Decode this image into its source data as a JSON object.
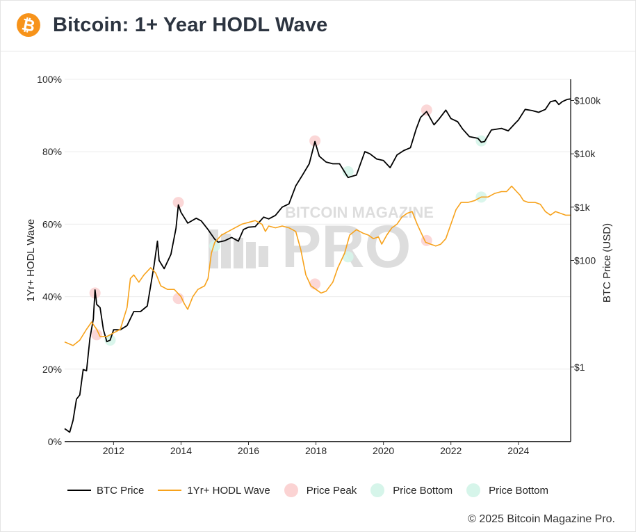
{
  "header": {
    "title": "Bitcoin: 1+ Year HODL Wave",
    "logo_icon": "bitcoin-logo-icon",
    "logo_color": "#f7931a"
  },
  "watermark": {
    "line1": "BITCOIN MAGAZINE",
    "line2": "PRO"
  },
  "legend": {
    "items": [
      {
        "label": "BTC Price",
        "kind": "line",
        "color": "#000000"
      },
      {
        "label": "1Yr+ HODL Wave",
        "kind": "line",
        "color": "#f7a21b"
      },
      {
        "label": "Price Peak",
        "kind": "dot",
        "color": "#fbd3d3"
      },
      {
        "label": "Price Bottom",
        "kind": "dot",
        "color": "#d6f5ea"
      },
      {
        "label": "Price Bottom",
        "kind": "dot",
        "color": "#d6f5ea"
      }
    ]
  },
  "copyright": "© 2025 Bitcoin Magazine Pro.",
  "chart_data": {
    "type": "line",
    "title": "Bitcoin: 1+ Year HODL Wave",
    "xlabel": "",
    "ylabel_left": "1Yr+ HODL Wave",
    "ylabel_right": "BTC Price (USD)",
    "x_range": [
      2010.55,
      2025.55
    ],
    "x_ticks": [
      2012,
      2014,
      2016,
      2018,
      2020,
      2022,
      2024
    ],
    "y_left_range": [
      0,
      100
    ],
    "y_left_ticks": [
      {
        "value": 0,
        "label": "0%"
      },
      {
        "value": 20,
        "label": "20%"
      },
      {
        "value": 40,
        "label": "40%"
      },
      {
        "value": 60,
        "label": "60%"
      },
      {
        "value": 80,
        "label": "80%"
      },
      {
        "value": 100,
        "label": "100%"
      }
    ],
    "y_right_scale": "log",
    "y_right_range": [
      0.04,
      250000
    ],
    "y_right_ticks": [
      {
        "value": 1,
        "label": "$1"
      },
      {
        "value": 100,
        "label": "$100"
      },
      {
        "value": 1000,
        "label": "$1k"
      },
      {
        "value": 10000,
        "label": "$10k"
      },
      {
        "value": 100000,
        "label": "$100k"
      }
    ],
    "grid": "horizontal",
    "legend_position": "bottom",
    "series": [
      {
        "name": "BTC Price",
        "axis": "right",
        "color": "#000000",
        "points": [
          [
            2010.55,
            0.07
          ],
          [
            2010.7,
            0.06
          ],
          [
            2010.8,
            0.1
          ],
          [
            2010.9,
            0.25
          ],
          [
            2011.0,
            0.3
          ],
          [
            2011.1,
            0.9
          ],
          [
            2011.2,
            0.85
          ],
          [
            2011.3,
            3.5
          ],
          [
            2011.4,
            8
          ],
          [
            2011.45,
            28
          ],
          [
            2011.5,
            15
          ],
          [
            2011.6,
            13
          ],
          [
            2011.7,
            5
          ],
          [
            2011.8,
            3
          ],
          [
            2011.9,
            3.2
          ],
          [
            2012.0,
            5
          ],
          [
            2012.2,
            5
          ],
          [
            2012.4,
            6
          ],
          [
            2012.6,
            11
          ],
          [
            2012.8,
            11
          ],
          [
            2013.0,
            14
          ],
          [
            2013.2,
            80
          ],
          [
            2013.3,
            230
          ],
          [
            2013.35,
            100
          ],
          [
            2013.5,
            70
          ],
          [
            2013.7,
            130
          ],
          [
            2013.85,
            400
          ],
          [
            2013.92,
            1100
          ],
          [
            2014.0,
            800
          ],
          [
            2014.2,
            500
          ],
          [
            2014.45,
            620
          ],
          [
            2014.6,
            550
          ],
          [
            2014.8,
            380
          ],
          [
            2015.0,
            250
          ],
          [
            2015.1,
            220
          ],
          [
            2015.3,
            235
          ],
          [
            2015.5,
            270
          ],
          [
            2015.7,
            230
          ],
          [
            2015.85,
            380
          ],
          [
            2016.0,
            420
          ],
          [
            2016.2,
            430
          ],
          [
            2016.45,
            650
          ],
          [
            2016.6,
            600
          ],
          [
            2016.8,
            700
          ],
          [
            2017.0,
            1000
          ],
          [
            2017.2,
            1150
          ],
          [
            2017.4,
            2500
          ],
          [
            2017.6,
            4000
          ],
          [
            2017.8,
            6500
          ],
          [
            2017.97,
            17000
          ],
          [
            2018.1,
            9000
          ],
          [
            2018.3,
            7000
          ],
          [
            2018.5,
            6500
          ],
          [
            2018.7,
            6500
          ],
          [
            2018.95,
            3600
          ],
          [
            2019.2,
            4000
          ],
          [
            2019.45,
            11000
          ],
          [
            2019.6,
            10000
          ],
          [
            2019.8,
            8000
          ],
          [
            2020.0,
            7500
          ],
          [
            2020.2,
            5500
          ],
          [
            2020.4,
            9500
          ],
          [
            2020.6,
            11500
          ],
          [
            2020.8,
            13000
          ],
          [
            2020.97,
            29000
          ],
          [
            2021.1,
            48000
          ],
          [
            2021.28,
            62000
          ],
          [
            2021.5,
            35000
          ],
          [
            2021.65,
            45000
          ],
          [
            2021.85,
            66000
          ],
          [
            2022.0,
            46000
          ],
          [
            2022.2,
            40000
          ],
          [
            2022.35,
            29000
          ],
          [
            2022.55,
            21000
          ],
          [
            2022.8,
            19500
          ],
          [
            2022.9,
            16500
          ],
          [
            2023.0,
            17000
          ],
          [
            2023.2,
            28000
          ],
          [
            2023.5,
            30000
          ],
          [
            2023.7,
            27000
          ],
          [
            2023.9,
            37000
          ],
          [
            2024.0,
            43000
          ],
          [
            2024.2,
            68000
          ],
          [
            2024.4,
            65000
          ],
          [
            2024.6,
            60000
          ],
          [
            2024.8,
            68000
          ],
          [
            2024.95,
            95000
          ],
          [
            2025.1,
            100000
          ],
          [
            2025.2,
            84000
          ],
          [
            2025.3,
            95000
          ],
          [
            2025.45,
            105000
          ],
          [
            2025.55,
            107000
          ]
        ]
      },
      {
        "name": "1Yr+ HODL Wave",
        "axis": "left",
        "color": "#f7a21b",
        "points": [
          [
            2010.55,
            27.5
          ],
          [
            2010.8,
            26.5
          ],
          [
            2011.0,
            28
          ],
          [
            2011.2,
            31
          ],
          [
            2011.35,
            33
          ],
          [
            2011.5,
            31
          ],
          [
            2011.6,
            29
          ],
          [
            2011.8,
            29
          ],
          [
            2012.0,
            30
          ],
          [
            2012.2,
            31
          ],
          [
            2012.4,
            37
          ],
          [
            2012.5,
            45
          ],
          [
            2012.6,
            46
          ],
          [
            2012.75,
            44
          ],
          [
            2012.9,
            46
          ],
          [
            2013.1,
            48
          ],
          [
            2013.25,
            46.5
          ],
          [
            2013.4,
            43
          ],
          [
            2013.6,
            42
          ],
          [
            2013.8,
            42
          ],
          [
            2013.9,
            41
          ],
          [
            2014.0,
            40
          ],
          [
            2014.1,
            38
          ],
          [
            2014.2,
            36.5
          ],
          [
            2014.35,
            40
          ],
          [
            2014.5,
            42
          ],
          [
            2014.7,
            43
          ],
          [
            2014.8,
            45
          ],
          [
            2014.9,
            52
          ],
          [
            2015.0,
            55
          ],
          [
            2015.2,
            57
          ],
          [
            2015.4,
            58
          ],
          [
            2015.6,
            59
          ],
          [
            2015.8,
            60
          ],
          [
            2016.0,
            60.5
          ],
          [
            2016.2,
            61
          ],
          [
            2016.4,
            60
          ],
          [
            2016.5,
            58
          ],
          [
            2016.6,
            59.5
          ],
          [
            2016.8,
            59
          ],
          [
            2017.0,
            59.5
          ],
          [
            2017.2,
            59
          ],
          [
            2017.4,
            58
          ],
          [
            2017.55,
            53
          ],
          [
            2017.7,
            46
          ],
          [
            2017.85,
            43
          ],
          [
            2018.0,
            42
          ],
          [
            2018.15,
            41
          ],
          [
            2018.3,
            41.5
          ],
          [
            2018.5,
            44
          ],
          [
            2018.65,
            48
          ],
          [
            2018.85,
            52
          ],
          [
            2019.0,
            57
          ],
          [
            2019.2,
            58.5
          ],
          [
            2019.4,
            57.5
          ],
          [
            2019.55,
            57
          ],
          [
            2019.7,
            56
          ],
          [
            2019.85,
            56.5
          ],
          [
            2019.95,
            54.5
          ],
          [
            2020.1,
            57
          ],
          [
            2020.25,
            59
          ],
          [
            2020.4,
            60
          ],
          [
            2020.55,
            62
          ],
          [
            2020.7,
            63
          ],
          [
            2020.85,
            63.5
          ],
          [
            2021.0,
            60
          ],
          [
            2021.1,
            58
          ],
          [
            2021.25,
            55
          ],
          [
            2021.4,
            54.5
          ],
          [
            2021.55,
            54
          ],
          [
            2021.7,
            54.5
          ],
          [
            2021.85,
            56
          ],
          [
            2022.0,
            60
          ],
          [
            2022.15,
            64
          ],
          [
            2022.3,
            66
          ],
          [
            2022.5,
            66
          ],
          [
            2022.7,
            66.5
          ],
          [
            2022.9,
            67.5
          ],
          [
            2023.1,
            67.5
          ],
          [
            2023.3,
            68.5
          ],
          [
            2023.5,
            69
          ],
          [
            2023.65,
            69
          ],
          [
            2023.8,
            70.5
          ],
          [
            2023.95,
            69
          ],
          [
            2024.05,
            68
          ],
          [
            2024.15,
            66.5
          ],
          [
            2024.3,
            66
          ],
          [
            2024.5,
            66
          ],
          [
            2024.65,
            65.5
          ],
          [
            2024.8,
            63.5
          ],
          [
            2024.95,
            62.5
          ],
          [
            2025.1,
            63.5
          ],
          [
            2025.25,
            63
          ],
          [
            2025.4,
            62.5
          ],
          [
            2025.55,
            62.5
          ]
        ]
      }
    ],
    "markers": [
      {
        "type": "Price Peak",
        "x": 2011.45,
        "y": 41,
        "color": "#fbd3d3"
      },
      {
        "type": "Price Peak",
        "x": 2011.5,
        "y": 29.5,
        "color": "#fbd3d3"
      },
      {
        "type": "Price Peak",
        "x": 2013.92,
        "y": 66,
        "color": "#fbd3d3"
      },
      {
        "type": "Price Peak",
        "x": 2013.92,
        "y": 39.5,
        "color": "#fbd3d3"
      },
      {
        "type": "Price Peak",
        "x": 2017.97,
        "y": 83,
        "color": "#fbd3d3"
      },
      {
        "type": "Price Peak",
        "x": 2017.97,
        "y": 43.5,
        "color": "#fbd3d3"
      },
      {
        "type": "Price Peak",
        "x": 2021.28,
        "y": 91.5,
        "color": "#fbd3d3"
      },
      {
        "type": "Price Peak",
        "x": 2021.28,
        "y": 55.5,
        "color": "#fbd3d3"
      },
      {
        "type": "Price Bottom",
        "x": 2011.9,
        "y": 28,
        "color": "#d6f5ea"
      },
      {
        "type": "Price Bottom",
        "x": 2015.0,
        "y": 54,
        "color": "#d6f5ea"
      },
      {
        "type": "Price Bottom",
        "x": 2018.95,
        "y": 74.5,
        "color": "#d6f5ea"
      },
      {
        "type": "Price Bottom",
        "x": 2018.95,
        "y": 51,
        "color": "#d6f5ea"
      },
      {
        "type": "Price Bottom",
        "x": 2022.9,
        "y": 83,
        "color": "#d6f5ea"
      },
      {
        "type": "Price Bottom",
        "x": 2022.9,
        "y": 67.5,
        "color": "#d6f5ea"
      }
    ]
  }
}
